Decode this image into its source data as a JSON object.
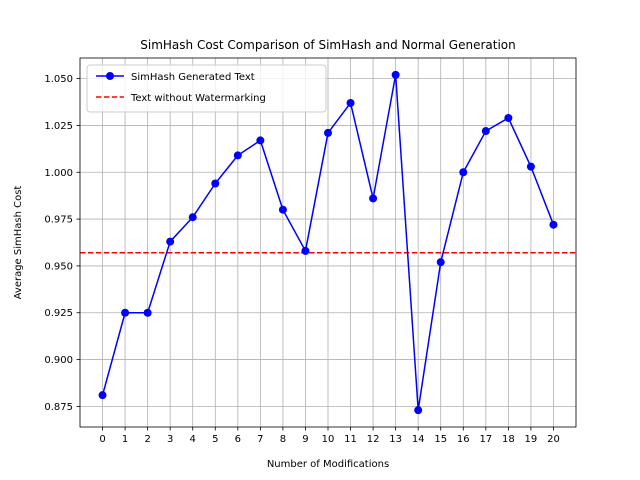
{
  "chart_data": {
    "type": "line",
    "title": "SimHash Cost Comparison of SimHash and Normal Generation",
    "xlabel": "Number of Modifications",
    "ylabel": "Average SimHash Cost",
    "x": [
      0,
      1,
      2,
      3,
      4,
      5,
      6,
      7,
      8,
      9,
      10,
      11,
      12,
      13,
      14,
      15,
      16,
      17,
      18,
      19,
      20
    ],
    "xticks": [
      "0",
      "1",
      "2",
      "3",
      "4",
      "5",
      "6",
      "7",
      "8",
      "9",
      "10",
      "11",
      "12",
      "13",
      "14",
      "15",
      "16",
      "17",
      "18",
      "19",
      "20"
    ],
    "yticks": [
      "0.875",
      "0.900",
      "0.925",
      "0.950",
      "0.975",
      "1.000",
      "1.025",
      "1.050"
    ],
    "ytick_values": [
      0.875,
      0.9,
      0.925,
      0.95,
      0.975,
      1.0,
      1.025,
      1.05
    ],
    "xlim": [
      -1.0,
      21.0
    ],
    "ylim": [
      0.864,
      1.061
    ],
    "grid": true,
    "legend_position": "top-left",
    "series": [
      {
        "name": "SimHash Generated Text",
        "kind": "line-marker",
        "color": "#0000ff",
        "values": [
          0.881,
          0.925,
          0.925,
          0.963,
          0.976,
          0.994,
          1.009,
          1.017,
          0.98,
          0.958,
          1.021,
          1.037,
          0.986,
          1.052,
          0.873,
          0.952,
          1.0,
          1.022,
          1.029,
          1.003,
          0.972
        ]
      },
      {
        "name": "Text without Watermarking",
        "kind": "hline-dashed",
        "color": "#ff0000",
        "value": 0.957
      }
    ]
  }
}
